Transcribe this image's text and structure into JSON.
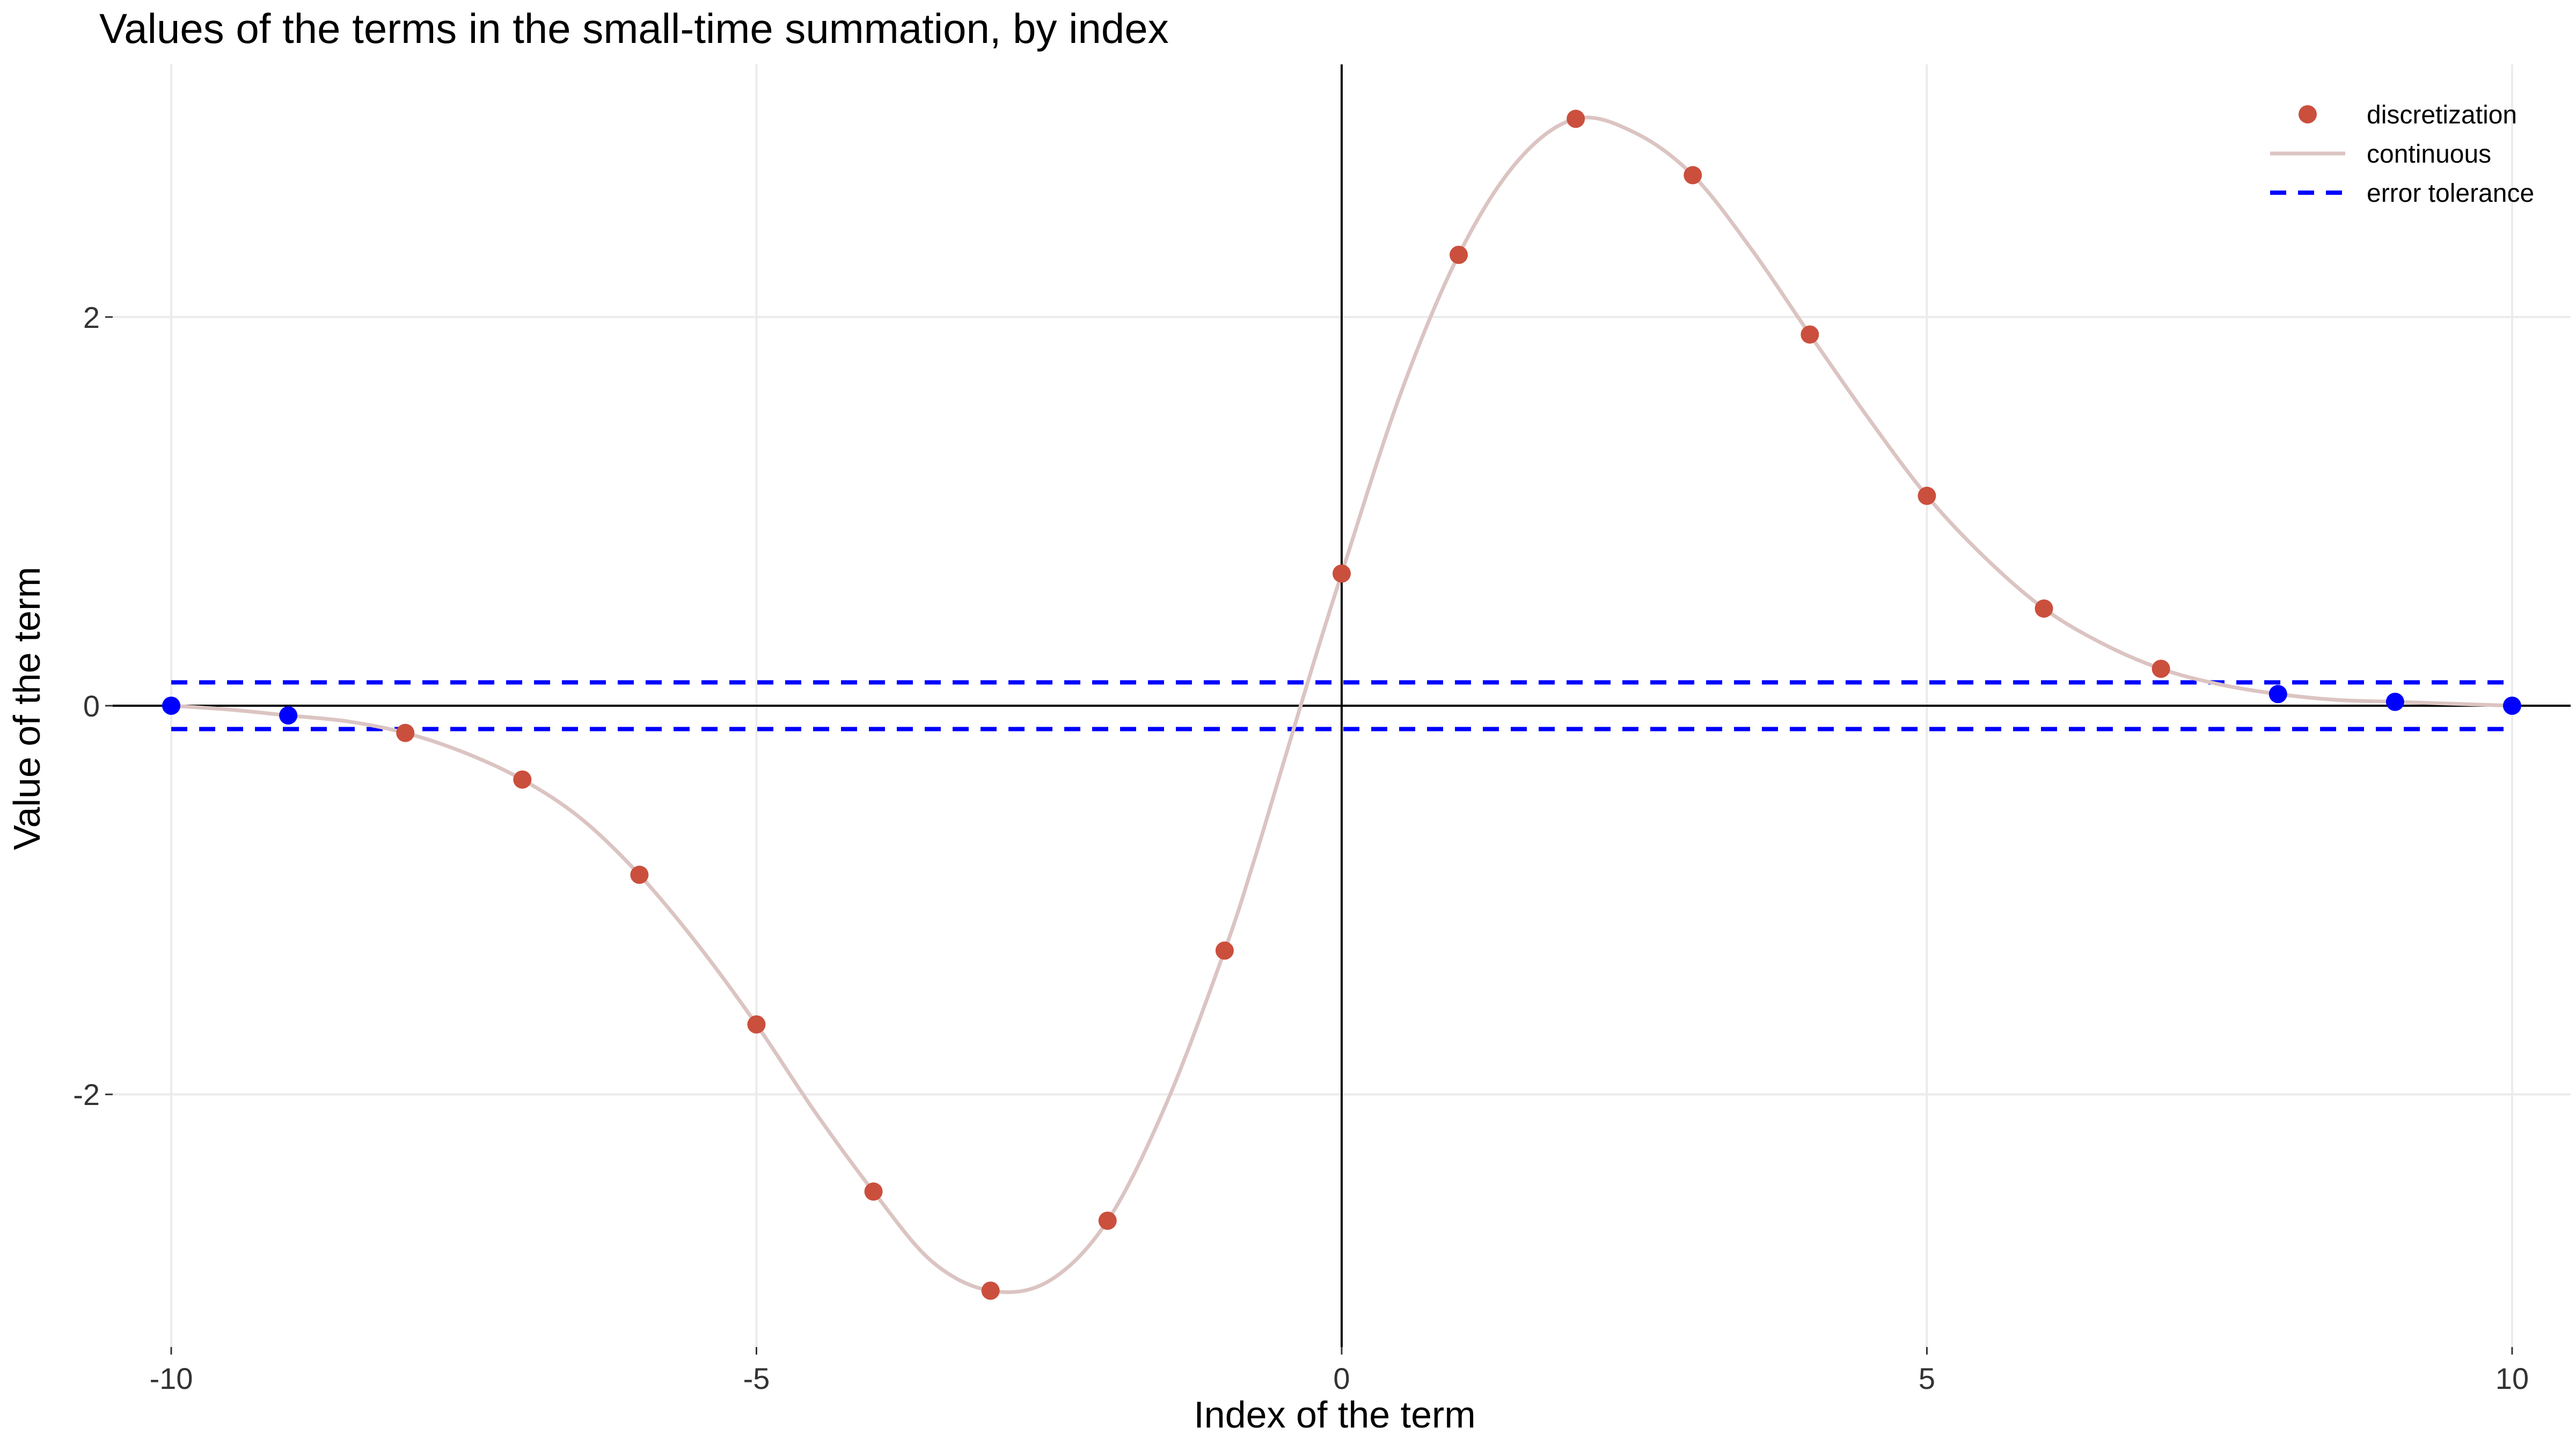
{
  "chart_data": {
    "type": "scatter",
    "title": "Values of the terms in the small-time summation, by index",
    "xlabel": "Index of the term",
    "ylabel": "Value of the term",
    "xlim": [
      -10.5,
      10.5
    ],
    "ylim": [
      -3.3,
      3.3
    ],
    "x_ticks": [
      -10,
      -5,
      0,
      5,
      10
    ],
    "x_tick_labels": [
      "-10",
      "-5",
      "0",
      "5",
      "10"
    ],
    "y_ticks": [
      -2,
      0,
      2
    ],
    "y_tick_labels": [
      "-2",
      "0",
      "2"
    ],
    "grid": true,
    "legend_position": "top-right",
    "error_tolerance": 0.12,
    "colors": {
      "discretization": "#cb4f3d",
      "within_tolerance": "#0000ff",
      "continuous": "#dbc4c2",
      "error_tolerance": "#0000ff",
      "grid": "#ebebeb",
      "reference_lines": "#000000"
    },
    "legend": [
      {
        "key": "discretization",
        "label": "discretization",
        "symbol": "point"
      },
      {
        "key": "continuous",
        "label": "continuous",
        "symbol": "line"
      },
      {
        "key": "error_tolerance",
        "label": "error tolerance",
        "symbol": "dashed"
      }
    ],
    "series": [
      {
        "name": "discretization",
        "type": "scatter",
        "x": [
          -10,
          -9,
          -8,
          -7,
          -6,
          -5,
          -4,
          -3,
          -2,
          -1,
          0,
          1,
          2,
          3,
          4,
          5,
          6,
          7,
          8,
          9,
          10
        ],
        "y": [
          0.0,
          -0.05,
          -0.14,
          -0.38,
          -0.87,
          -1.64,
          -2.5,
          -3.01,
          -2.65,
          -1.26,
          0.68,
          2.32,
          3.02,
          2.73,
          1.91,
          1.08,
          0.5,
          0.19,
          0.06,
          0.02,
          0.0
        ]
      },
      {
        "name": "continuous",
        "type": "line",
        "x": [
          -10,
          -9.5,
          -9,
          -8.5,
          -8,
          -7.5,
          -7,
          -6.5,
          -6,
          -5.5,
          -5,
          -4.5,
          -4,
          -3.5,
          -3,
          -2.5,
          -2,
          -1.5,
          -1,
          -0.75,
          -0.5,
          -0.25,
          0,
          0.5,
          1,
          1.5,
          2,
          2.5,
          3,
          3.5,
          4,
          4.5,
          5,
          5.5,
          6,
          6.5,
          7,
          7.5,
          8,
          8.5,
          9,
          9.5,
          10
        ],
        "y": [
          0.0,
          -0.02,
          -0.05,
          -0.08,
          -0.14,
          -0.24,
          -0.38,
          -0.58,
          -0.87,
          -1.23,
          -1.64,
          -2.09,
          -2.5,
          -2.86,
          -3.01,
          -2.96,
          -2.65,
          -2.05,
          -1.26,
          -0.8,
          -0.3,
          0.2,
          0.68,
          1.6,
          2.32,
          2.8,
          3.02,
          2.95,
          2.73,
          2.35,
          1.91,
          1.48,
          1.08,
          0.76,
          0.5,
          0.32,
          0.19,
          0.11,
          0.06,
          0.03,
          0.02,
          0.01,
          0.0
        ]
      },
      {
        "name": "error tolerance",
        "type": "hline",
        "y": [
          0.12,
          -0.12
        ]
      }
    ]
  }
}
